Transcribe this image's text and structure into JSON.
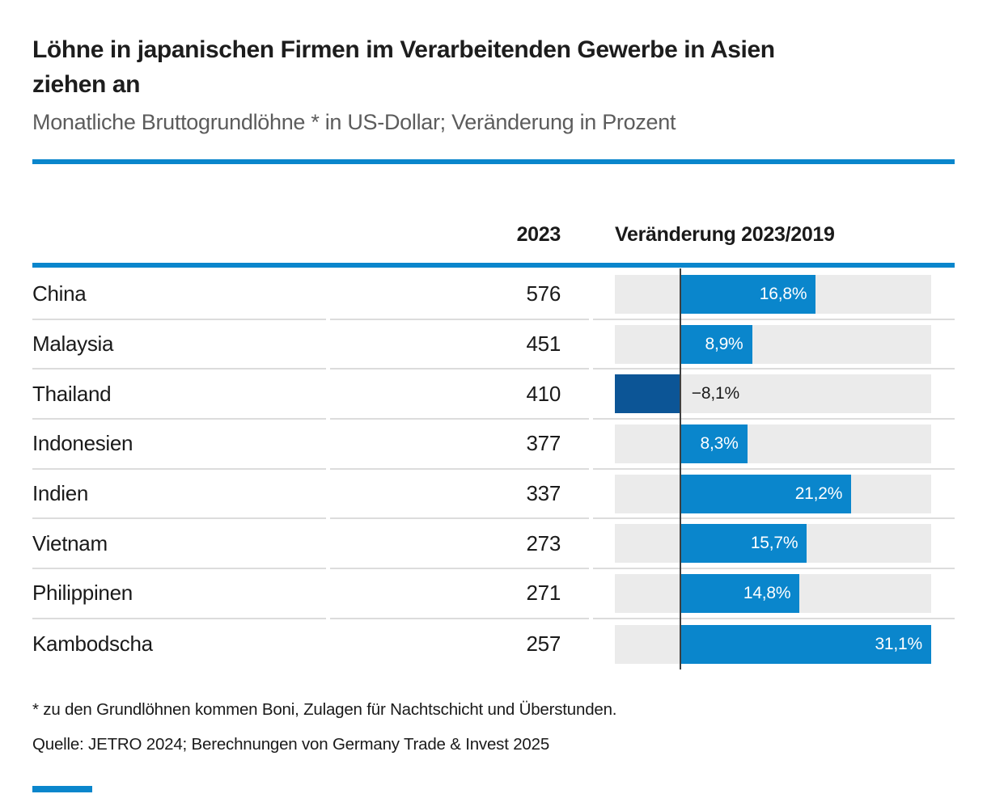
{
  "header": {
    "title_line1": "Löhne in japanischen Firmen im Verarbeitenden Gewerbe in Asien",
    "title_line2": "ziehen an",
    "subtitle": "Monatliche Bruttogrundlöhne * in US-Dollar; Veränderung in Prozent"
  },
  "table": {
    "col_year": "2023",
    "col_change": "Veränderung 2023/2019",
    "rows": [
      {
        "country": "China",
        "wage": "576",
        "change": 16.8,
        "change_label": "16,8%"
      },
      {
        "country": "Malaysia",
        "wage": "451",
        "change": 8.9,
        "change_label": "8,9%"
      },
      {
        "country": "Thailand",
        "wage": "410",
        "change": -8.1,
        "change_label": "−8,1%"
      },
      {
        "country": "Indonesien",
        "wage": "377",
        "change": 8.3,
        "change_label": "8,3%"
      },
      {
        "country": "Indien",
        "wage": "337",
        "change": 21.2,
        "change_label": "21,2%"
      },
      {
        "country": "Vietnam",
        "wage": "273",
        "change": 15.7,
        "change_label": "15,7%"
      },
      {
        "country": "Philippinen",
        "wage": "271",
        "change": 14.8,
        "change_label": "14,8%"
      },
      {
        "country": "Kambodscha",
        "wage": "257",
        "change": 31.1,
        "change_label": "31,1%"
      }
    ]
  },
  "footer": {
    "footnote": "* zu den Grundlöhnen kommen Boni, Zulagen für Nachtschicht und Überstunden.",
    "source": "Quelle: JETRO 2024; Berechnungen von Germany Trade & Invest 2025"
  },
  "colors": {
    "accent_blue": "#0a86cc",
    "negative_blue": "#0c5596",
    "bar_track_gray": "#ebebeb",
    "separator_gray": "#dcdcdc",
    "zero_line_gray": "#404040"
  },
  "chart_data": {
    "type": "bar",
    "orientation": "horizontal",
    "title": "Löhne in japanischen Firmen im Verarbeitenden Gewerbe in Asien ziehen an",
    "subtitle": "Monatliche Bruttogrundlöhne * in US-Dollar; Veränderung in Prozent",
    "categories": [
      "China",
      "Malaysia",
      "Thailand",
      "Indonesien",
      "Indien",
      "Vietnam",
      "Philippinen",
      "Kambodscha"
    ],
    "series": [
      {
        "name": "2023",
        "unit": "US-Dollar",
        "values": [
          576,
          451,
          410,
          377,
          337,
          273,
          271,
          257
        ]
      },
      {
        "name": "Veränderung 2023/2019",
        "unit": "%",
        "values": [
          16.8,
          8.9,
          -8.1,
          8.3,
          21.2,
          15.7,
          14.8,
          31.1
        ]
      }
    ],
    "xlim": [
      -8.1,
      31.1
    ],
    "grid": "none",
    "legend": "none",
    "footnote": "* zu den Grundlöhnen kommen Boni, Zulagen für Nachtschicht und Überstunden.",
    "source": "Quelle: JETRO 2024; Berechnungen von Germany Trade & Invest 2025"
  }
}
